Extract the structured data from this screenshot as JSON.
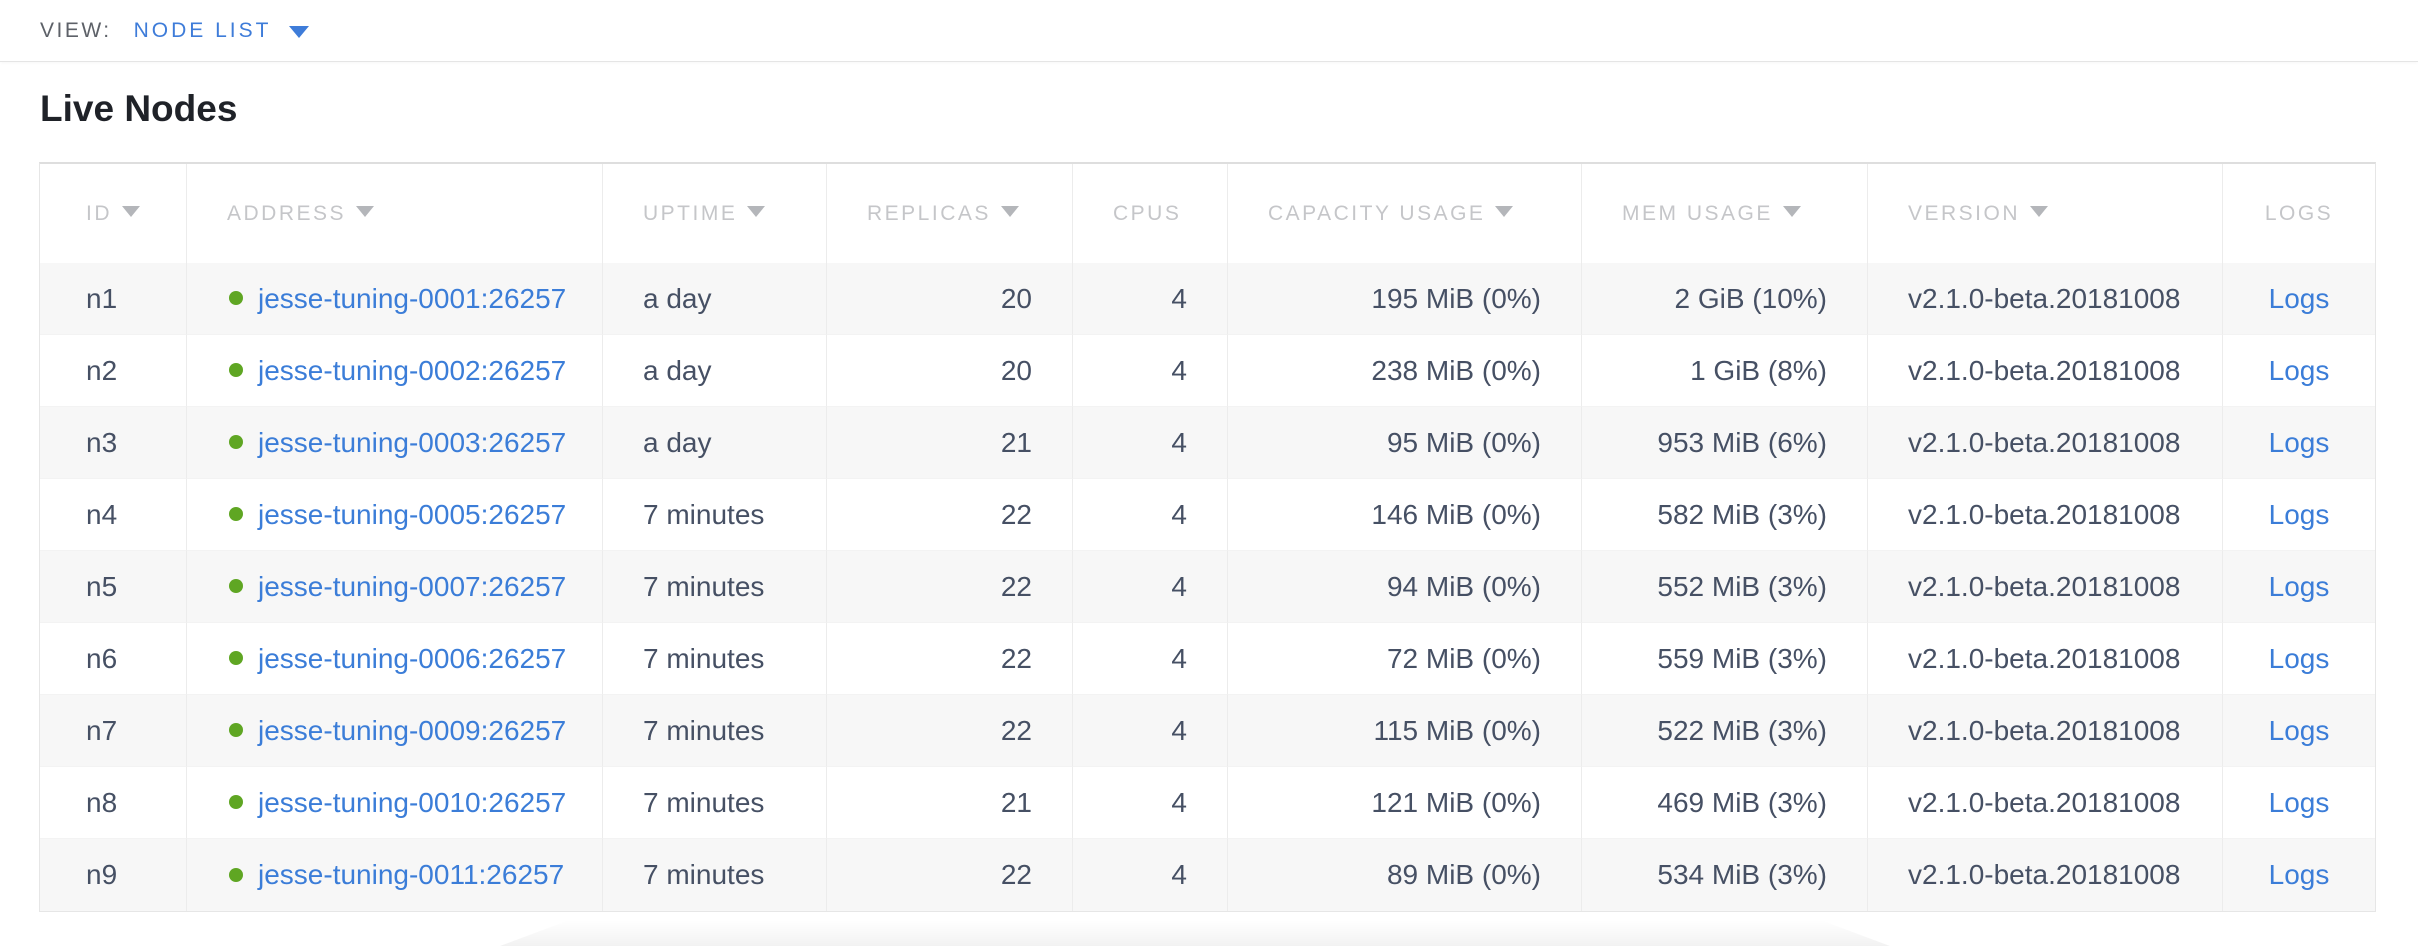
{
  "view_bar": {
    "label": "VIEW:",
    "selected": "NODE LIST"
  },
  "page": {
    "title": "Live Nodes"
  },
  "table": {
    "columns": [
      {
        "key": "id",
        "label": "ID",
        "sort_arrow": true
      },
      {
        "key": "address",
        "label": "ADDRESS",
        "sort_arrow": true
      },
      {
        "key": "uptime",
        "label": "UPTIME",
        "sort_arrow": true
      },
      {
        "key": "replicas",
        "label": "REPLICAS",
        "sort_arrow": true
      },
      {
        "key": "cpus",
        "label": "CPUS",
        "sort_arrow": false
      },
      {
        "key": "capacity_usage",
        "label": "CAPACITY USAGE",
        "sort_arrow": true
      },
      {
        "key": "mem_usage",
        "label": "MEM USAGE",
        "sort_arrow": true
      },
      {
        "key": "version",
        "label": "VERSION",
        "sort_arrow": true
      },
      {
        "key": "logs",
        "label": "LOGS",
        "sort_arrow": false
      }
    ],
    "rows": [
      {
        "id": "n1",
        "address": "jesse-tuning-0001:26257",
        "uptime": "a day",
        "replicas": "20",
        "cpus": "4",
        "capacity_usage": "195 MiB (0%)",
        "mem_usage": "2 GiB (10%)",
        "version": "v2.1.0-beta.20181008",
        "logs": "Logs"
      },
      {
        "id": "n2",
        "address": "jesse-tuning-0002:26257",
        "uptime": "a day",
        "replicas": "20",
        "cpus": "4",
        "capacity_usage": "238 MiB (0%)",
        "mem_usage": "1 GiB (8%)",
        "version": "v2.1.0-beta.20181008",
        "logs": "Logs"
      },
      {
        "id": "n3",
        "address": "jesse-tuning-0003:26257",
        "uptime": "a day",
        "replicas": "21",
        "cpus": "4",
        "capacity_usage": "95 MiB (0%)",
        "mem_usage": "953 MiB (6%)",
        "version": "v2.1.0-beta.20181008",
        "logs": "Logs"
      },
      {
        "id": "n4",
        "address": "jesse-tuning-0005:26257",
        "uptime": "7 minutes",
        "replicas": "22",
        "cpus": "4",
        "capacity_usage": "146 MiB (0%)",
        "mem_usage": "582 MiB (3%)",
        "version": "v2.1.0-beta.20181008",
        "logs": "Logs"
      },
      {
        "id": "n5",
        "address": "jesse-tuning-0007:26257",
        "uptime": "7 minutes",
        "replicas": "22",
        "cpus": "4",
        "capacity_usage": "94 MiB (0%)",
        "mem_usage": "552 MiB (3%)",
        "version": "v2.1.0-beta.20181008",
        "logs": "Logs"
      },
      {
        "id": "n6",
        "address": "jesse-tuning-0006:26257",
        "uptime": "7 minutes",
        "replicas": "22",
        "cpus": "4",
        "capacity_usage": "72 MiB (0%)",
        "mem_usage": "559 MiB (3%)",
        "version": "v2.1.0-beta.20181008",
        "logs": "Logs"
      },
      {
        "id": "n7",
        "address": "jesse-tuning-0009:26257",
        "uptime": "7 minutes",
        "replicas": "22",
        "cpus": "4",
        "capacity_usage": "115 MiB (0%)",
        "mem_usage": "522 MiB (3%)",
        "version": "v2.1.0-beta.20181008",
        "logs": "Logs"
      },
      {
        "id": "n8",
        "address": "jesse-tuning-0010:26257",
        "uptime": "7 minutes",
        "replicas": "21",
        "cpus": "4",
        "capacity_usage": "121 MiB (0%)",
        "mem_usage": "469 MiB (3%)",
        "version": "v2.1.0-beta.20181008",
        "logs": "Logs"
      },
      {
        "id": "n9",
        "address": "jesse-tuning-0011:26257",
        "uptime": "7 minutes",
        "replicas": "22",
        "cpus": "4",
        "capacity_usage": "89 MiB (0%)",
        "mem_usage": "534 MiB (3%)",
        "version": "v2.1.0-beta.20181008",
        "logs": "Logs"
      }
    ]
  },
  "colors": {
    "link_blue": "#3b7dd8",
    "selector_blue": "#3e7cd9",
    "status_dot_green": "#5fa623",
    "header_text_gray": "#c5c6c9",
    "body_text": "#465064",
    "stripe_gray": "#f7f7f7"
  }
}
